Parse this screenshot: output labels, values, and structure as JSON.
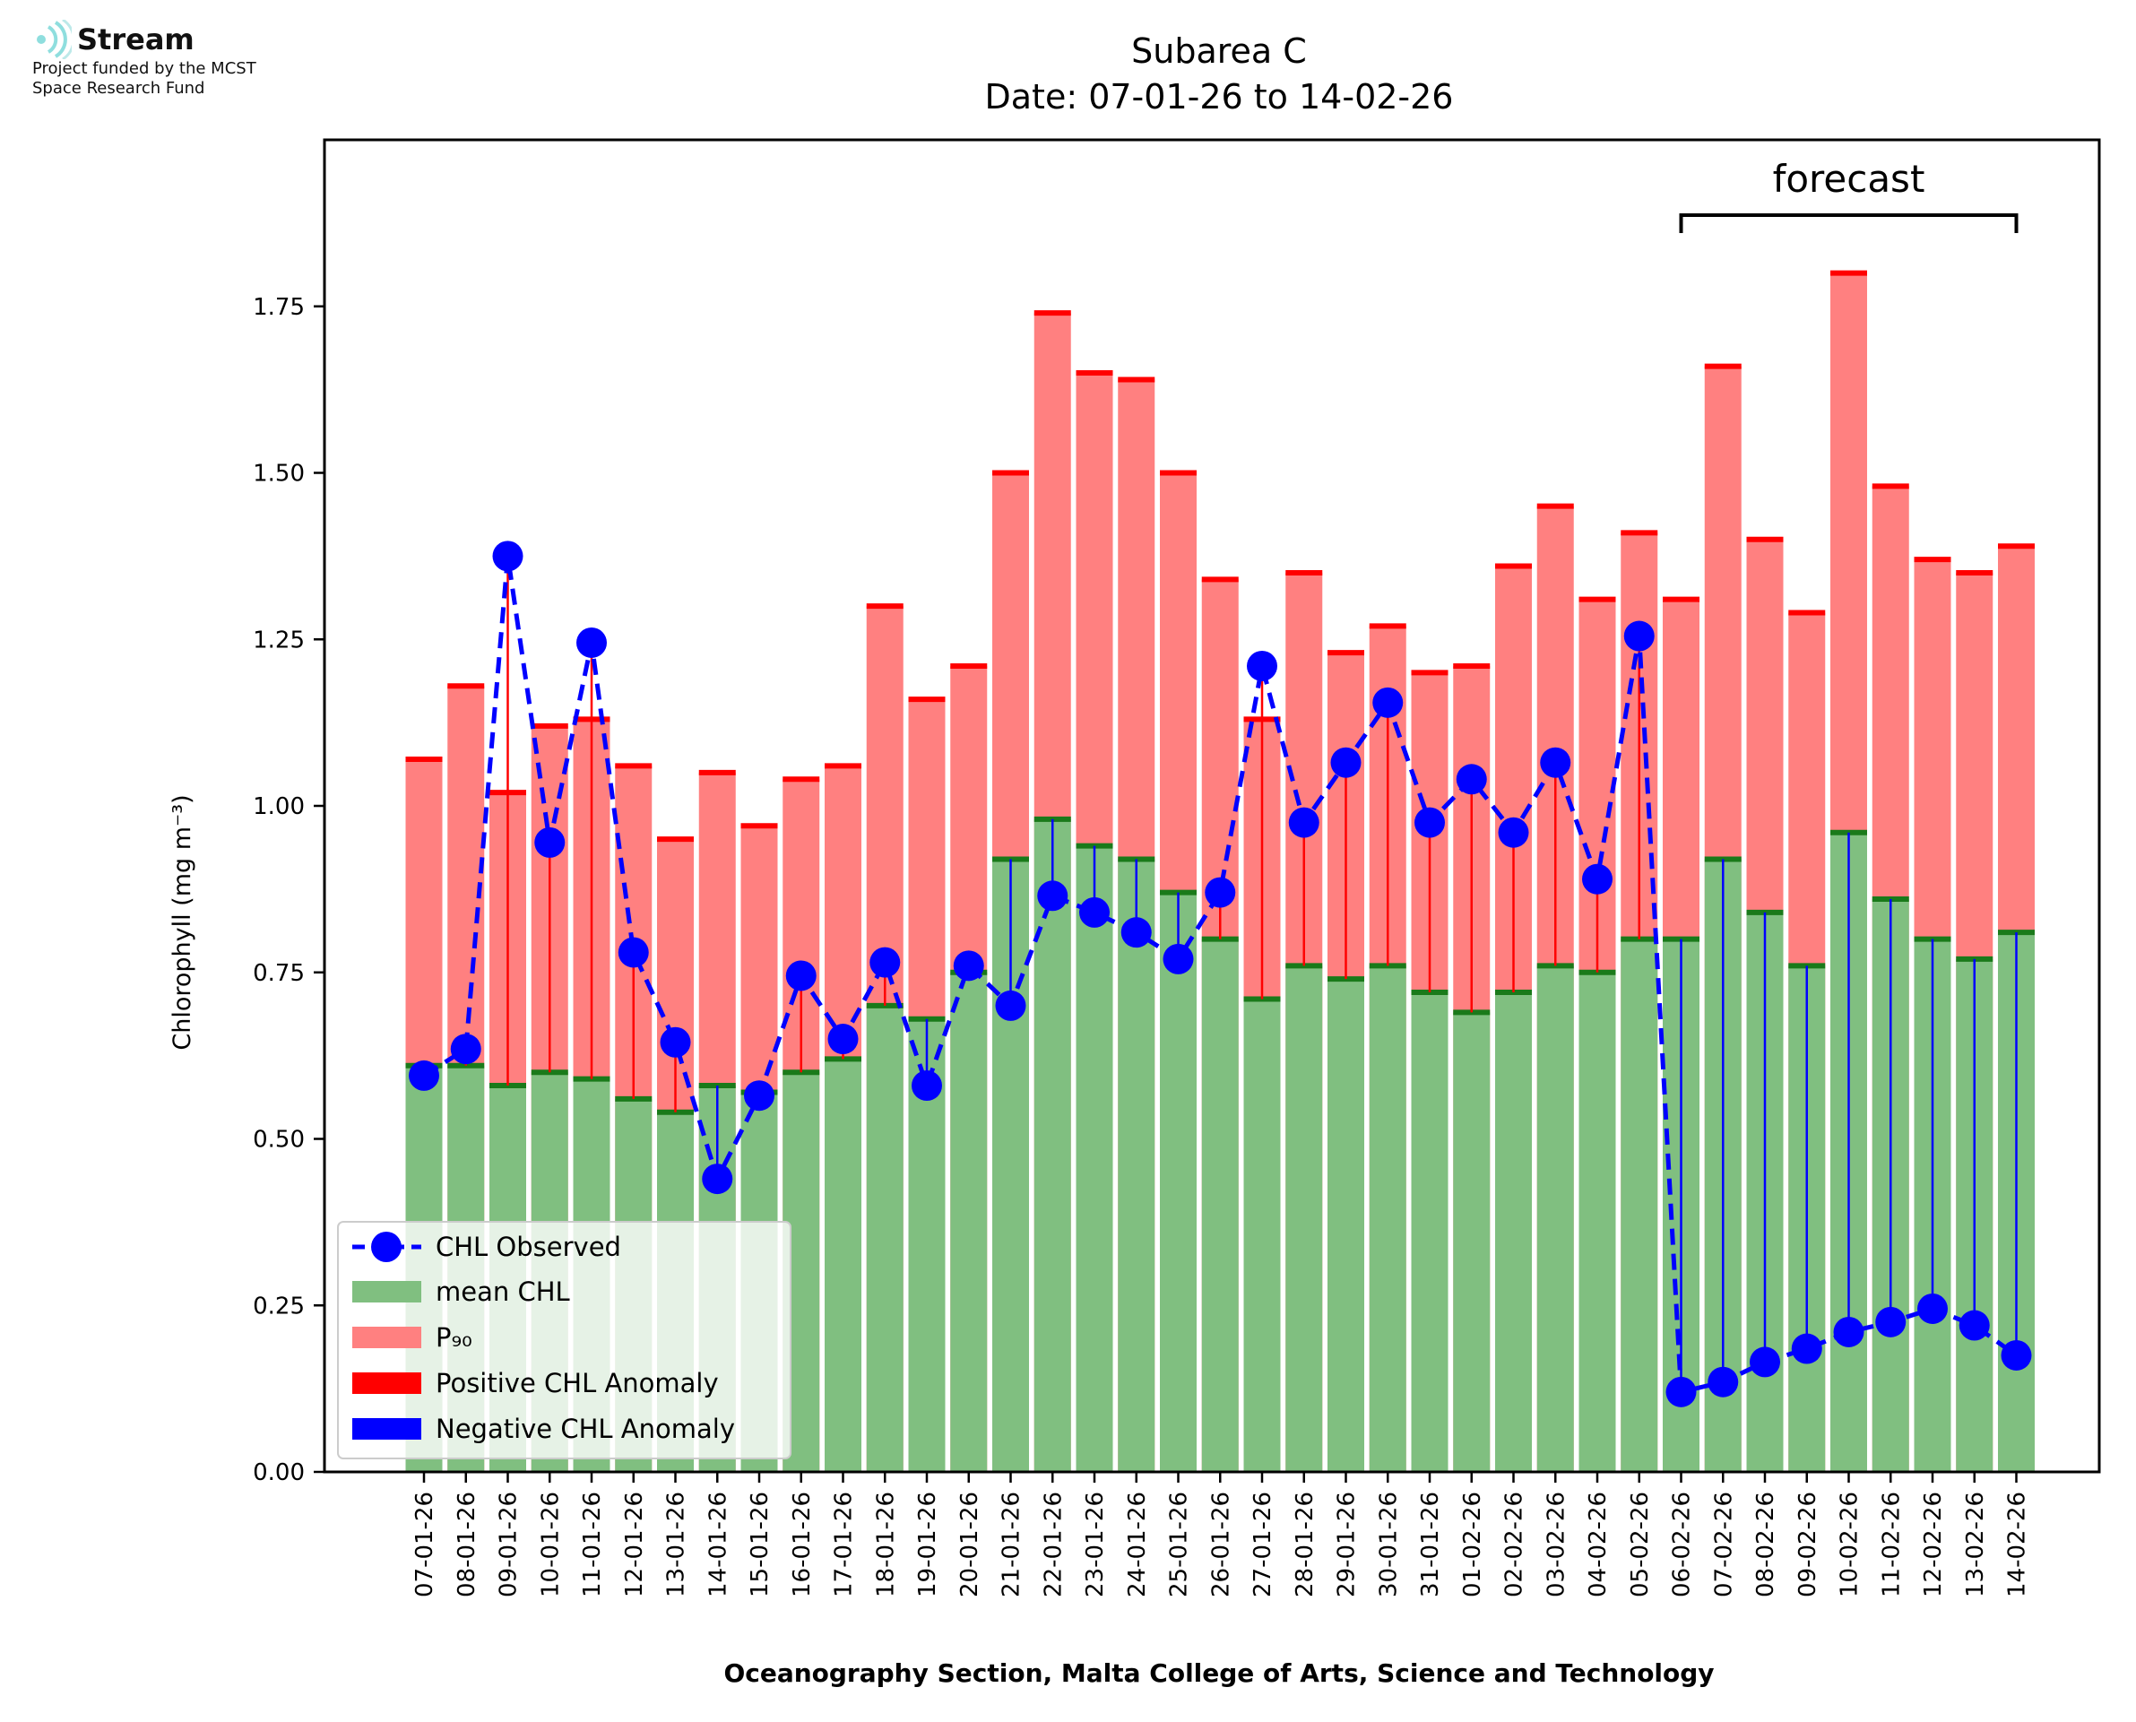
{
  "logo": {
    "name": "Stream",
    "tagline_1": "Project funded by the MCST",
    "tagline_2": "Space Research Fund"
  },
  "chart_data": {
    "type": "bar",
    "title": "Subarea C",
    "subtitle": "Date: 07-01-26 to 14-02-26",
    "xlabel": "Oceanography Section, Malta College of Arts, Science and Technology",
    "ylabel": "Chlorophyll (mg m⁻³)",
    "ylim": [
      0,
      2.0
    ],
    "yticks": [
      "0.00",
      "0.25",
      "0.50",
      "0.75",
      "1.00",
      "1.25",
      "1.50",
      "1.75"
    ],
    "grid": false,
    "legend_position": "lower-left",
    "legend": [
      "CHL Observed",
      "mean CHL",
      "P₉₀",
      "Positive CHL Anomaly",
      "Negative CHL Anomaly"
    ],
    "annotation": {
      "text": "forecast",
      "from": "06-02-26",
      "to": "14-02-26"
    },
    "colors": {
      "mean": "#80bf80",
      "mean_edge": "#1a7a1a",
      "p90": "#ff8080",
      "p90_edge": "#ff0000",
      "positive_anomaly": "#ff0000",
      "negative_anomaly": "#0000ff",
      "observed": "#0000ff"
    },
    "categories": [
      "07-01-26",
      "08-01-26",
      "09-01-26",
      "10-01-26",
      "11-01-26",
      "12-01-26",
      "13-01-26",
      "14-01-26",
      "15-01-26",
      "16-01-26",
      "17-01-26",
      "18-01-26",
      "19-01-26",
      "20-01-26",
      "21-01-26",
      "22-01-26",
      "23-01-26",
      "24-01-26",
      "25-01-26",
      "26-01-26",
      "27-01-26",
      "28-01-26",
      "29-01-26",
      "30-01-26",
      "31-01-26",
      "01-02-26",
      "02-02-26",
      "03-02-26",
      "04-02-26",
      "05-02-26",
      "06-02-26",
      "07-02-26",
      "08-02-26",
      "09-02-26",
      "10-02-26",
      "11-02-26",
      "12-02-26",
      "13-02-26",
      "14-02-26"
    ],
    "series": [
      {
        "name": "mean CHL",
        "values": [
          0.61,
          0.61,
          0.58,
          0.6,
          0.59,
          0.56,
          0.54,
          0.58,
          0.57,
          0.6,
          0.62,
          0.7,
          0.68,
          0.75,
          0.92,
          0.98,
          0.94,
          0.92,
          0.87,
          0.8,
          0.71,
          0.76,
          0.74,
          0.76,
          0.72,
          0.69,
          0.72,
          0.76,
          0.75,
          0.8,
          0.8,
          0.92,
          0.84,
          0.76,
          0.96,
          0.86,
          0.8,
          0.77,
          0.81
        ]
      },
      {
        "name": "P₉₀",
        "values": [
          1.07,
          1.18,
          1.02,
          1.12,
          1.13,
          1.06,
          0.95,
          1.05,
          0.97,
          1.04,
          1.06,
          1.3,
          1.16,
          1.21,
          1.5,
          1.74,
          1.65,
          1.64,
          1.5,
          1.34,
          1.13,
          1.35,
          1.23,
          1.27,
          1.2,
          1.21,
          1.36,
          1.45,
          1.31,
          1.41,
          1.31,
          1.66,
          1.4,
          1.29,
          1.8,
          1.48,
          1.37,
          1.35,
          1.39
        ]
      },
      {
        "name": "CHL Observed",
        "values": [
          0.595,
          0.635,
          1.375,
          0.945,
          1.245,
          0.78,
          0.645,
          0.44,
          0.565,
          0.745,
          0.65,
          0.765,
          0.58,
          0.76,
          0.7,
          0.865,
          0.84,
          0.81,
          0.77,
          0.87,
          1.21,
          0.975,
          1.065,
          1.155,
          0.975,
          1.04,
          0.96,
          1.065,
          0.89,
          1.255,
          0.12,
          0.135,
          0.165,
          0.185,
          0.21,
          0.225,
          0.245,
          0.22,
          0.175
        ]
      }
    ]
  }
}
